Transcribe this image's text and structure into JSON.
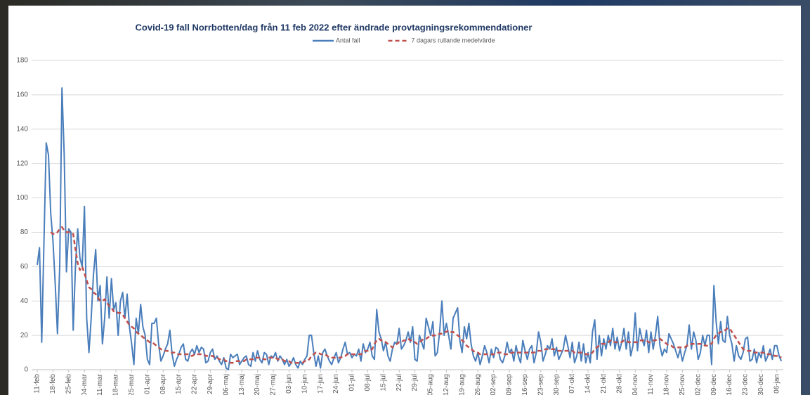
{
  "chart_data": {
    "type": "line",
    "title": "Covid-19 fall Norrbotten/dag från 11 feb 2022 efter ändrade provtagningsrekommendationer",
    "categories": [
      "11-feb",
      null,
      null,
      null,
      null,
      null,
      null,
      "18-feb",
      null,
      null,
      null,
      null,
      null,
      null,
      "25-feb",
      null,
      null,
      null,
      null,
      null,
      null,
      "04-mar",
      null,
      null,
      null,
      null,
      null,
      null,
      "11-mar",
      null,
      null,
      null,
      null,
      null,
      null,
      "18-mar",
      null,
      null,
      null,
      null,
      null,
      null,
      "25-mar",
      null,
      null,
      null,
      null,
      null,
      null,
      "01-apr",
      null,
      null,
      null,
      null,
      null,
      null,
      "08-apr",
      null,
      null,
      null,
      null,
      null,
      null,
      "15-apr",
      null,
      null,
      null,
      null,
      null,
      null,
      "22-apr",
      null,
      null,
      null,
      null,
      null,
      null,
      "29-apr",
      null,
      null,
      null,
      null,
      null,
      null,
      "06-maj",
      null,
      null,
      null,
      null,
      null,
      null,
      "13-maj",
      null,
      null,
      null,
      null,
      null,
      null,
      "20-maj",
      null,
      null,
      null,
      null,
      null,
      null,
      "27-maj",
      null,
      null,
      null,
      null,
      null,
      null,
      "03-jun",
      null,
      null,
      null,
      null,
      null,
      null,
      "10-jun",
      null,
      null,
      null,
      null,
      null,
      null,
      "17-jun",
      null,
      null,
      null,
      null,
      null,
      null,
      "24-jun",
      null,
      null,
      null,
      null,
      null,
      null,
      "01-jul",
      null,
      null,
      null,
      null,
      null,
      null,
      "08-jul",
      null,
      null,
      null,
      null,
      null,
      null,
      "15-jul",
      null,
      null,
      null,
      null,
      null,
      null,
      "22-jul",
      null,
      null,
      null,
      null,
      null,
      null,
      "29-jul",
      null,
      null,
      null,
      null,
      null,
      null,
      "05-aug",
      null,
      null,
      null,
      null,
      null,
      null,
      "12-aug",
      null,
      null,
      null,
      null,
      null,
      null,
      "19-aug",
      null,
      null,
      null,
      null,
      null,
      null,
      "26-aug",
      null,
      null,
      null,
      null,
      null,
      null,
      "02-sep",
      null,
      null,
      null,
      null,
      null,
      null,
      "09-sep",
      null,
      null,
      null,
      null,
      null,
      null,
      "16-sep",
      null,
      null,
      null,
      null,
      null,
      null,
      "23-sep",
      null,
      null,
      null,
      null,
      null,
      null,
      "30-sep",
      null,
      null,
      null,
      null,
      null,
      null,
      "07-okt",
      null,
      null,
      null,
      null,
      null,
      null,
      "14-okt",
      null,
      null,
      null,
      null,
      null,
      null,
      "21-okt",
      null,
      null,
      null,
      null,
      null,
      null,
      "28-okt",
      null,
      null,
      null,
      null,
      null,
      null,
      "04-nov",
      null,
      null,
      null,
      null,
      null,
      null,
      "11-nov",
      null,
      null,
      null,
      null,
      null,
      null,
      "18-nov",
      null,
      null,
      null,
      null,
      null,
      null,
      "25-nov",
      null,
      null,
      null,
      null,
      null,
      null,
      "02-dec",
      null,
      null,
      null,
      null,
      null,
      null,
      "09-dec",
      null,
      null,
      null,
      null,
      null,
      null,
      "16-dec",
      null,
      null,
      null,
      null,
      null,
      null,
      "23-dec",
      null,
      null,
      null,
      null,
      null,
      null,
      "30-dec",
      null,
      null,
      null,
      null,
      null,
      null,
      "06-jan",
      null,
      null
    ],
    "series": [
      {
        "name": "Antal fall",
        "color": "#4a7ebb",
        "dash": false,
        "values": [
          61,
          71,
          16,
          75,
          132,
          125,
          91,
          75,
          50,
          21,
          60,
          164,
          125,
          57,
          82,
          80,
          23,
          60,
          82,
          65,
          60,
          95,
          30,
          10,
          30,
          55,
          70,
          40,
          49,
          15,
          30,
          54,
          30,
          53,
          35,
          39,
          20,
          40,
          45,
          30,
          44,
          25,
          15,
          3,
          30,
          21,
          38,
          25,
          20,
          6,
          3,
          27,
          27,
          30,
          15,
          5,
          8,
          12,
          15,
          23,
          9,
          2,
          6,
          9,
          13,
          15,
          6,
          5,
          10,
          12,
          9,
          14,
          10,
          13,
          12,
          4,
          5,
          10,
          12,
          6,
          8,
          5,
          3,
          7,
          1,
          0,
          9,
          7,
          8,
          9,
          3,
          5,
          7,
          8,
          3,
          2,
          10,
          5,
          11,
          6,
          4,
          10,
          9,
          3,
          8,
          7,
          10,
          5,
          8,
          6,
          3,
          6,
          2,
          4,
          7,
          3,
          1,
          5,
          3,
          6,
          8,
          20,
          20,
          10,
          2,
          8,
          1,
          10,
          12,
          8,
          5,
          3,
          7,
          10,
          4,
          7,
          12,
          16,
          9,
          10,
          7,
          9,
          8,
          12,
          5,
          15,
          10,
          12,
          16,
          8,
          6,
          35,
          22,
          18,
          11,
          16,
          8,
          5,
          12,
          16,
          15,
          24,
          12,
          14,
          17,
          22,
          16,
          25,
          6,
          5,
          20,
          16,
          12,
          30,
          25,
          20,
          28,
          8,
          10,
          22,
          40,
          20,
          27,
          20,
          12,
          30,
          33,
          36,
          17,
          10,
          25,
          18,
          27,
          15,
          8,
          5,
          10,
          3,
          8,
          14,
          10,
          4,
          12,
          7,
          13,
          12,
          6,
          4,
          8,
          16,
          10,
          12,
          5,
          14,
          8,
          4,
          17,
          11,
          6,
          12,
          14,
          4,
          10,
          22,
          16,
          5,
          9,
          14,
          12,
          18,
          8,
          13,
          6,
          9,
          12,
          20,
          14,
          7,
          16,
          4,
          8,
          16,
          5,
          15,
          4,
          10,
          4,
          22,
          29,
          6,
          20,
          8,
          18,
          12,
          20,
          14,
          24,
          12,
          19,
          11,
          16,
          24,
          12,
          22,
          8,
          14,
          33,
          11,
          24,
          18,
          14,
          23,
          10,
          22,
          12,
          20,
          31,
          14,
          8,
          12,
          10,
          21,
          18,
          15,
          11,
          7,
          12,
          5,
          10,
          14,
          26,
          12,
          22,
          17,
          6,
          10,
          20,
          14,
          20,
          20,
          3,
          49,
          28,
          15,
          28,
          17,
          16,
          31,
          20,
          15,
          5,
          14,
          8,
          6,
          10,
          18,
          19,
          5,
          6,
          12,
          4,
          10,
          7,
          14,
          5,
          8,
          12,
          6,
          14,
          14,
          8,
          5
        ]
      },
      {
        "name": "7 dagars rullande medelvärde",
        "color": "#c0504d",
        "dash": true,
        "values": [
          null,
          null,
          null,
          null,
          null,
          null,
          80,
          79,
          79,
          80,
          82,
          83,
          81,
          80,
          80,
          80,
          79,
          70,
          62,
          58,
          60,
          56,
          52,
          48,
          47,
          45,
          44,
          42,
          40,
          40,
          41,
          39,
          37,
          36,
          34,
          34,
          33,
          33,
          32,
          30,
          28,
          26,
          25,
          24,
          22,
          21,
          20,
          19,
          18,
          17,
          16,
          16,
          15,
          14,
          13,
          12,
          11,
          11,
          11,
          10,
          10,
          10,
          9,
          9,
          9,
          9,
          9,
          9,
          8,
          8,
          9,
          9,
          9,
          9,
          9,
          8,
          8,
          8,
          8,
          7,
          7,
          6,
          6,
          6,
          5,
          5,
          4,
          4,
          5,
          5,
          5,
          5,
          5,
          6,
          6,
          6,
          6,
          7,
          7,
          7,
          7,
          6,
          6,
          7,
          7,
          7,
          7,
          6,
          6,
          6,
          5,
          5,
          5,
          4,
          4,
          4,
          4,
          4,
          4,
          5,
          5,
          6,
          8,
          9,
          10,
          10,
          9,
          9,
          9,
          8,
          7,
          7,
          7,
          7,
          7,
          7,
          8,
          8,
          9,
          9,
          9,
          9,
          9,
          9,
          9,
          10,
          11,
          11,
          11,
          12,
          15,
          17,
          18,
          17,
          17,
          16,
          15,
          14,
          13,
          14,
          15,
          16,
          16,
          17,
          17,
          18,
          17,
          17,
          16,
          15,
          16,
          17,
          18,
          18,
          19,
          19,
          20,
          20,
          20,
          21,
          21,
          22,
          22,
          23,
          22,
          22,
          21,
          20,
          19,
          17,
          16,
          14,
          13,
          12,
          11,
          10,
          10,
          9,
          9,
          9,
          9,
          9,
          9,
          9,
          9,
          10,
          10,
          10,
          9,
          9,
          9,
          10,
          10,
          10,
          10,
          10,
          10,
          10,
          10,
          10,
          10,
          10,
          11,
          11,
          11,
          11,
          12,
          12,
          12,
          12,
          12,
          11,
          11,
          11,
          11,
          11,
          11,
          11,
          11,
          10,
          10,
          10,
          10,
          10,
          9,
          9,
          9,
          10,
          12,
          13,
          14,
          15,
          15,
          15,
          16,
          17,
          16,
          16,
          16,
          16,
          16,
          17,
          17,
          16,
          16,
          16,
          16,
          16,
          17,
          17,
          17,
          17,
          16,
          16,
          17,
          17,
          18,
          18,
          17,
          16,
          15,
          14,
          14,
          13,
          13,
          13,
          13,
          13,
          13,
          14,
          14,
          15,
          15,
          15,
          15,
          15,
          15,
          14,
          14,
          15,
          15,
          18,
          20,
          21,
          22,
          22,
          23,
          24,
          24,
          22,
          20,
          18,
          16,
          14,
          12,
          11,
          11,
          11,
          11,
          10,
          10,
          10,
          10,
          10,
          9,
          9,
          9,
          9,
          8,
          8,
          8,
          7
        ]
      }
    ],
    "ylim": [
      0,
      180
    ],
    "yticks": [
      0,
      20,
      40,
      60,
      80,
      100,
      120,
      140,
      160,
      180
    ],
    "grid": true
  }
}
